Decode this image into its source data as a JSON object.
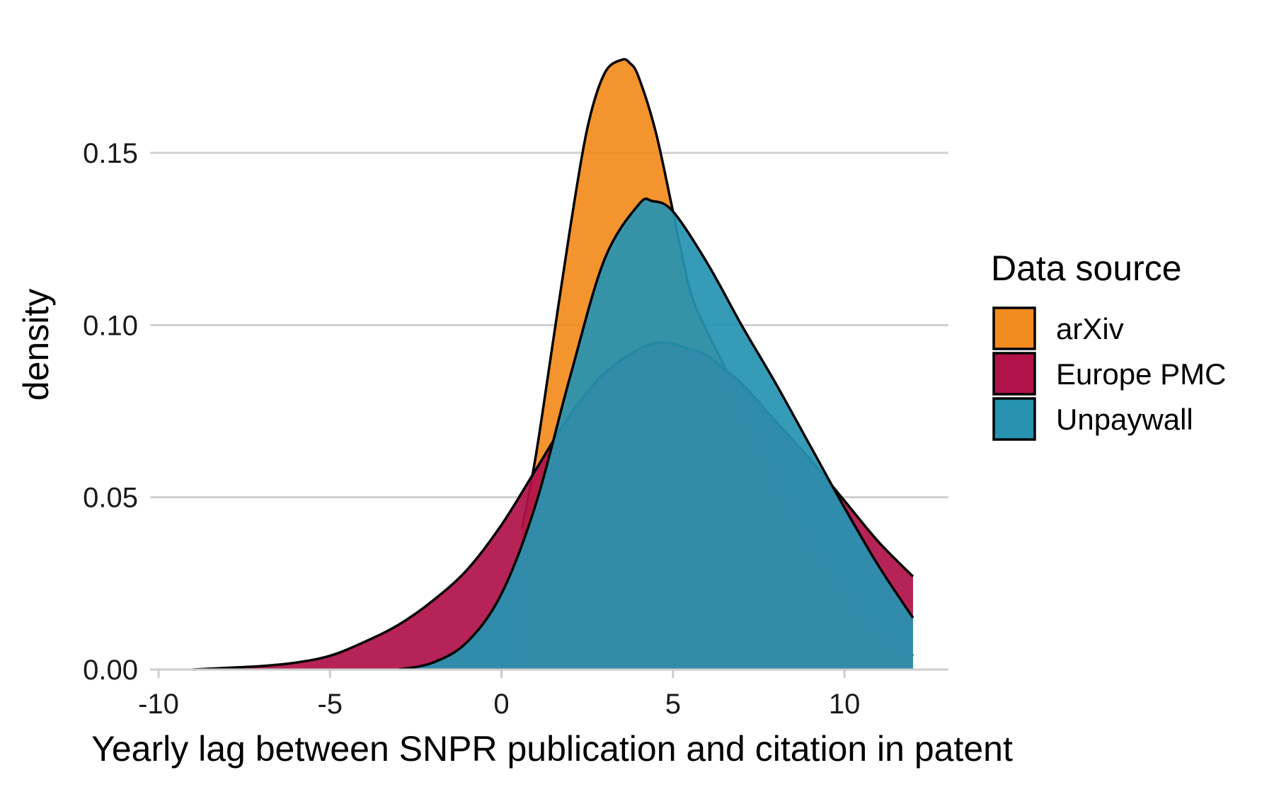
{
  "chart_data": {
    "type": "area",
    "subtype": "density",
    "xlabel": "Yearly lag between SNPR publication and citation in patent",
    "ylabel": "density",
    "xlim": [
      -10,
      12
    ],
    "ylim": [
      0,
      0.18
    ],
    "x_ticks": [
      -10,
      -5,
      0,
      5,
      10
    ],
    "x_tick_labels": [
      "-10",
      "-5",
      "0",
      "5",
      "10"
    ],
    "y_ticks": [
      0,
      0.05,
      0.1,
      0.15
    ],
    "y_tick_labels": [
      "0.00",
      "0.05",
      "0.10",
      "0.15"
    ],
    "grid": "horizontal major",
    "legend": {
      "title": "Data source",
      "position": "right",
      "entries": [
        "arXiv",
        "Europe PMC",
        "Unpaywall"
      ]
    },
    "series": [
      {
        "name": "arXiv",
        "color": "#F28C1E",
        "x": [
          0.6,
          1,
          1.5,
          2,
          2.5,
          3,
          3.5,
          3.75,
          4,
          4.5,
          5,
          5.5,
          6,
          6.5,
          7,
          7.5,
          8,
          9,
          10,
          11,
          12
        ],
        "y": [
          0.041,
          0.062,
          0.095,
          0.128,
          0.157,
          0.173,
          0.177,
          0.176,
          0.172,
          0.156,
          0.133,
          0.11,
          0.098,
          0.088,
          0.077,
          0.067,
          0.056,
          0.038,
          0.024,
          0.012,
          0.004
        ]
      },
      {
        "name": "Europe PMC",
        "color": "#B0124A",
        "x": [
          -9,
          -8,
          -7,
          -6,
          -5,
          -4,
          -3,
          -2,
          -1,
          0,
          1,
          2,
          3,
          4,
          4.7,
          5.5,
          6,
          7,
          8,
          9,
          10,
          11,
          12
        ],
        "y": [
          0.0,
          0.0005,
          0.001,
          0.002,
          0.004,
          0.008,
          0.013,
          0.02,
          0.029,
          0.042,
          0.058,
          0.074,
          0.086,
          0.093,
          0.095,
          0.093,
          0.091,
          0.083,
          0.072,
          0.061,
          0.049,
          0.037,
          0.027
        ]
      },
      {
        "name": "Unpaywall",
        "color": "#2793B0",
        "x": [
          -3,
          -2,
          -1,
          0,
          1,
          2,
          3,
          4,
          4.4,
          5,
          6,
          7,
          8,
          9,
          10,
          11,
          12
        ],
        "y": [
          0.0,
          0.002,
          0.008,
          0.022,
          0.048,
          0.085,
          0.119,
          0.135,
          0.136,
          0.133,
          0.118,
          0.1,
          0.083,
          0.065,
          0.047,
          0.03,
          0.015
        ]
      }
    ]
  }
}
